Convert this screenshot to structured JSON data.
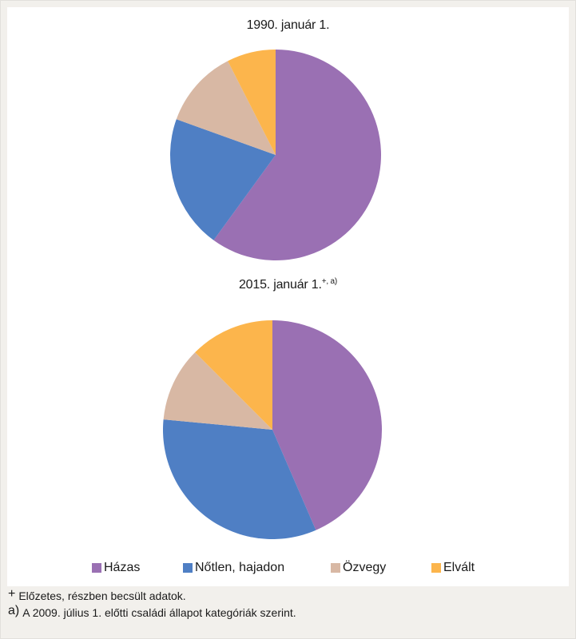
{
  "chart_data": [
    {
      "type": "pie",
      "title": "1990. január 1.",
      "categories": [
        "Házas",
        "Nőtlen, hajadon",
        "Özvegy",
        "Elvált"
      ],
      "values": [
        60.0,
        20.5,
        12.0,
        7.5
      ],
      "colors": [
        "#9a70b3",
        "#4f7fc4",
        "#d8b8a4",
        "#fcb54c"
      ]
    },
    {
      "type": "pie",
      "title": "2015. január 1.",
      "title_superscript": "+, a)",
      "categories": [
        "Házas",
        "Nőtlen, hajadon",
        "Özvegy",
        "Elvált"
      ],
      "values": [
        43.5,
        33.0,
        11.0,
        12.5
      ],
      "colors": [
        "#9a70b3",
        "#4f7fc4",
        "#d8b8a4",
        "#fcb54c"
      ]
    }
  ],
  "legend": {
    "placement": "bottom",
    "items": [
      {
        "label": "Házas",
        "color": "#9a70b3"
      },
      {
        "label": "Nőtlen, hajadon",
        "color": "#4f7fc4"
      },
      {
        "label": "Özvegy",
        "color": "#d8b8a4"
      },
      {
        "label": "Elvált",
        "color": "#fcb54c"
      }
    ]
  },
  "footnotes": [
    {
      "mark": "+",
      "text": "Előzetes, részben becsült adatok."
    },
    {
      "mark": "a)",
      "text": "A 2009. július 1. előtti családi állapot kategóriák szerint."
    }
  ]
}
